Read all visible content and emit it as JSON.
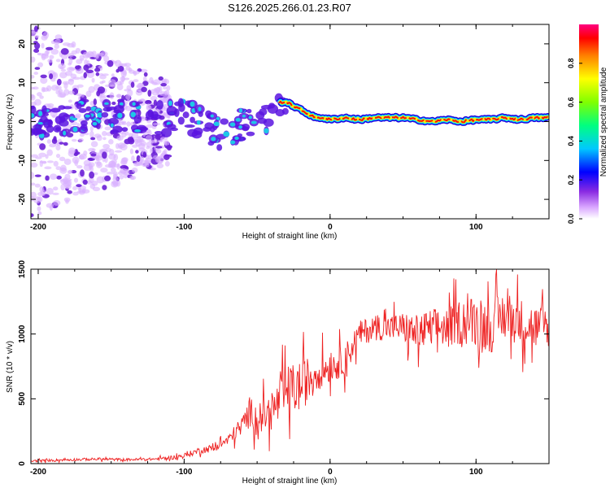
{
  "figure_title": "S126.2025.266.01.23.R07",
  "chart_data": [
    {
      "type": "heatmap",
      "xlabel": "Height of straight line (km)",
      "ylabel": "Frequency (Hz)",
      "xlim": [
        -205,
        150
      ],
      "ylim": [
        -25,
        25
      ],
      "xticks": [
        -200,
        -100,
        0,
        100
      ],
      "yticks": [
        -20,
        -10,
        0,
        10,
        20
      ],
      "xtick_labels": [
        "-200",
        "-100",
        "0",
        "100"
      ],
      "ytick_labels": [
        "-20",
        "-10",
        "0",
        "10",
        "20"
      ],
      "colorbar": {
        "label": "Normalized spectral amplitude",
        "range": [
          0,
          1
        ],
        "ticks": [
          0,
          0.2,
          0.4,
          0.6,
          0.8
        ],
        "tick_labels": [
          "0.0",
          "0.2",
          "0.4",
          "0.6",
          "0.8"
        ],
        "colormap": [
          "#ffffff",
          "#cc66ff",
          "#0000ff",
          "#00ffff",
          "#00ff00",
          "#ffff00",
          "#ff7f00",
          "#ff0000",
          "#ff00ff"
        ]
      },
      "ridge": {
        "description_points_x": [
          -205,
          -180,
          -160,
          -140,
          -120,
          -110,
          -100,
          -90,
          -80,
          -75,
          -70,
          -60,
          -50,
          -45,
          -40,
          -35,
          -30,
          -25,
          -20,
          -15,
          -10,
          -5,
          0,
          10,
          20,
          30,
          40,
          50,
          60,
          70,
          80,
          90,
          100,
          110,
          120,
          130,
          140,
          150
        ],
        "frequency_hz": [
          0,
          0.5,
          2,
          1,
          0,
          1,
          2,
          0,
          -2,
          -4,
          -2,
          -1,
          0,
          1,
          2,
          5,
          5,
          4,
          3,
          2,
          1,
          1,
          0.5,
          1,
          0.5,
          1,
          1,
          1,
          0.5,
          0,
          0.5,
          0,
          0.5,
          0.5,
          1,
          0.5,
          1,
          1
        ]
      }
    },
    {
      "type": "line",
      "xlabel": "Height of straight line (km)",
      "ylabel": "SNR (10 * v/v)",
      "xlim": [
        -205,
        150
      ],
      "ylim": [
        0,
        1500
      ],
      "xticks": [
        -200,
        -100,
        0,
        100
      ],
      "yticks": [
        0,
        500,
        1000,
        1500
      ],
      "xtick_labels": [
        "-200",
        "-100",
        "0",
        "100"
      ],
      "ytick_labels": [
        "0",
        "500",
        "1000",
        "1500"
      ],
      "color": "#ee2222",
      "series": [
        {
          "name": "SNR",
          "x": [
            -205,
            -180,
            -160,
            -140,
            -120,
            -110,
            -100,
            -90,
            -80,
            -70,
            -60,
            -55,
            -50,
            -40,
            -30,
            -20,
            -10,
            0,
            10,
            20,
            30,
            40,
            50,
            60,
            70,
            80,
            90,
            100,
            110,
            120,
            130,
            140,
            150
          ],
          "y": [
            20,
            30,
            35,
            30,
            35,
            45,
            60,
            100,
            120,
            180,
            300,
            400,
            350,
            400,
            550,
            600,
            700,
            750,
            800,
            1000,
            1050,
            1050,
            1050,
            1000,
            1050,
            1050,
            1100,
            1100,
            1050,
            1150,
            1100,
            1050,
            1050
          ],
          "noise_amplitude": [
            8,
            10,
            10,
            10,
            10,
            15,
            20,
            25,
            30,
            40,
            80,
            120,
            120,
            150,
            200,
            200,
            150,
            120,
            120,
            100,
            100,
            100,
            120,
            150,
            150,
            150,
            180,
            200,
            200,
            200,
            180,
            180,
            150
          ]
        }
      ]
    }
  ]
}
